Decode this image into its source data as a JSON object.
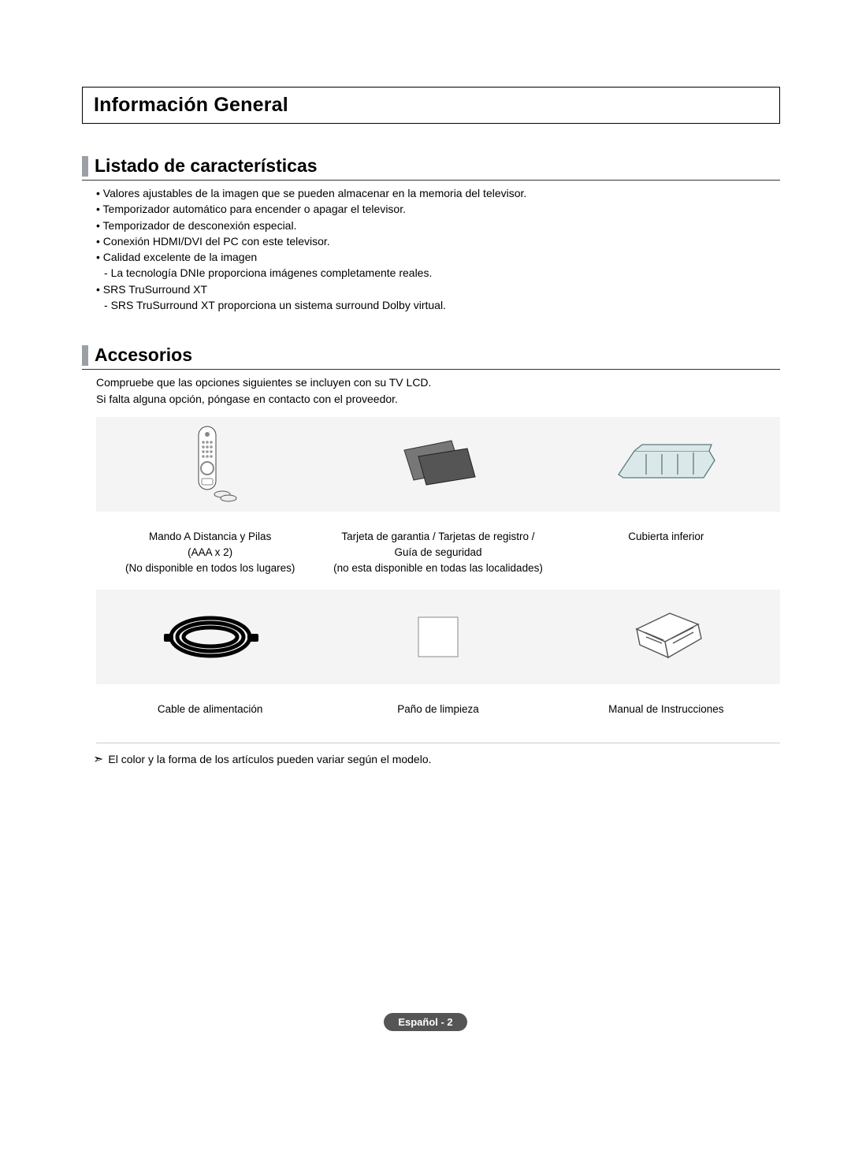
{
  "colors": {
    "text": "#000000",
    "border": "#000000",
    "rule": "#333333",
    "vbar": "#9aa0a6",
    "panel_bg": "#f4f4f4",
    "badge_bg": "#555555",
    "badge_fg": "#ffffff",
    "hr": "#cccccc"
  },
  "typography": {
    "h1_size": 25,
    "h2_size": 23,
    "body_size": 14,
    "caption_size": 13.5,
    "badge_size": 13
  },
  "header": {
    "title": "Información General"
  },
  "section1": {
    "title": "Listado de características",
    "bullets": [
      {
        "type": "b",
        "text": "Valores ajustables de la imagen que se pueden almacenar en la memoria del televisor."
      },
      {
        "type": "b",
        "text": "Temporizador automático para encender o apagar el televisor."
      },
      {
        "type": "b",
        "text": "Temporizador de desconexión especial."
      },
      {
        "type": "b",
        "text": "Conexión HDMI/DVI del PC con este televisor."
      },
      {
        "type": "b",
        "text": "Calidad excelente de la imagen"
      },
      {
        "type": "s",
        "text": "La tecnología DNIe proporciona imágenes completamente reales."
      },
      {
        "type": "b",
        "text": "SRS TruSurround XT"
      },
      {
        "type": "s",
        "text": "SRS TruSurround XT proporciona un sistema surround Dolby virtual."
      }
    ]
  },
  "section2": {
    "title": "Accesorios",
    "intro_line1": "Compruebe que las opciones siguientes se incluyen con su TV LCD.",
    "intro_line2": "Si falta alguna opción, póngase en contacto con el proveedor.",
    "rows": [
      {
        "items": [
          {
            "icon": "remote",
            "caption_lines": [
              "Mando A Distancia y Pilas",
              "(AAA x 2)",
              "(No disponible en todos los lugares)"
            ]
          },
          {
            "icon": "cards",
            "caption_lines": [
              "Tarjeta de garantia / Tarjetas de registro /",
              "Guía de seguridad",
              "(no esta disponible en todas las localidades)"
            ]
          },
          {
            "icon": "cover",
            "caption_lines": [
              "Cubierta inferior"
            ]
          }
        ]
      },
      {
        "items": [
          {
            "icon": "cable",
            "caption_lines": [
              "Cable de alimentación"
            ]
          },
          {
            "icon": "cloth",
            "caption_lines": [
              "Paño de limpieza"
            ]
          },
          {
            "icon": "manual",
            "caption_lines": [
              "Manual de Instrucciones"
            ]
          }
        ]
      }
    ],
    "note": "El color y la forma de los artículos pueden variar según el modelo."
  },
  "footer": {
    "label": "Español - 2"
  }
}
